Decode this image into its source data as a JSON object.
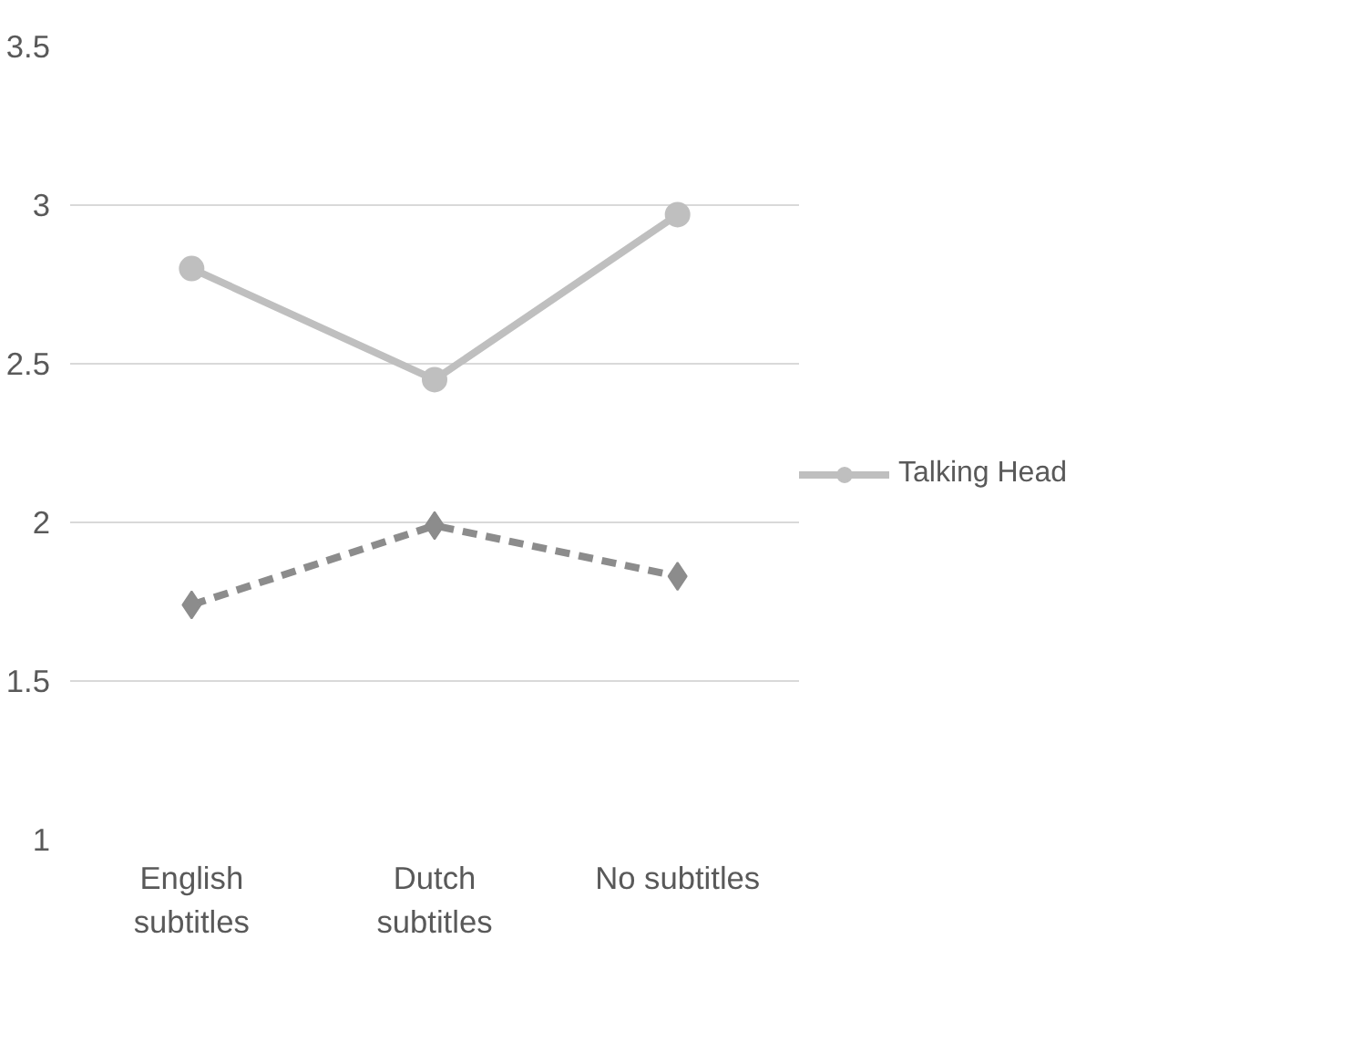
{
  "chart_data": {
    "type": "line",
    "categories": [
      [
        "English",
        "subtitles"
      ],
      [
        "Dutch",
        "subtitles"
      ],
      [
        "No subtitles"
      ]
    ],
    "series": [
      {
        "color": "#8c8c8c",
        "values": [
          1.74,
          1.99,
          1.83
        ],
        "marker": "diamond",
        "line_style": "dashed"
      },
      {
        "name": "Talking Head",
        "color": "#bfbfbf",
        "values": [
          2.8,
          2.45,
          2.97
        ],
        "marker": "circle",
        "line_style": "solid"
      }
    ],
    "ylim": [
      1,
      3.5
    ],
    "yticks": [
      1,
      1.5,
      2,
      2.5,
      3,
      3.5
    ],
    "grid": "y",
    "legend": "right"
  }
}
